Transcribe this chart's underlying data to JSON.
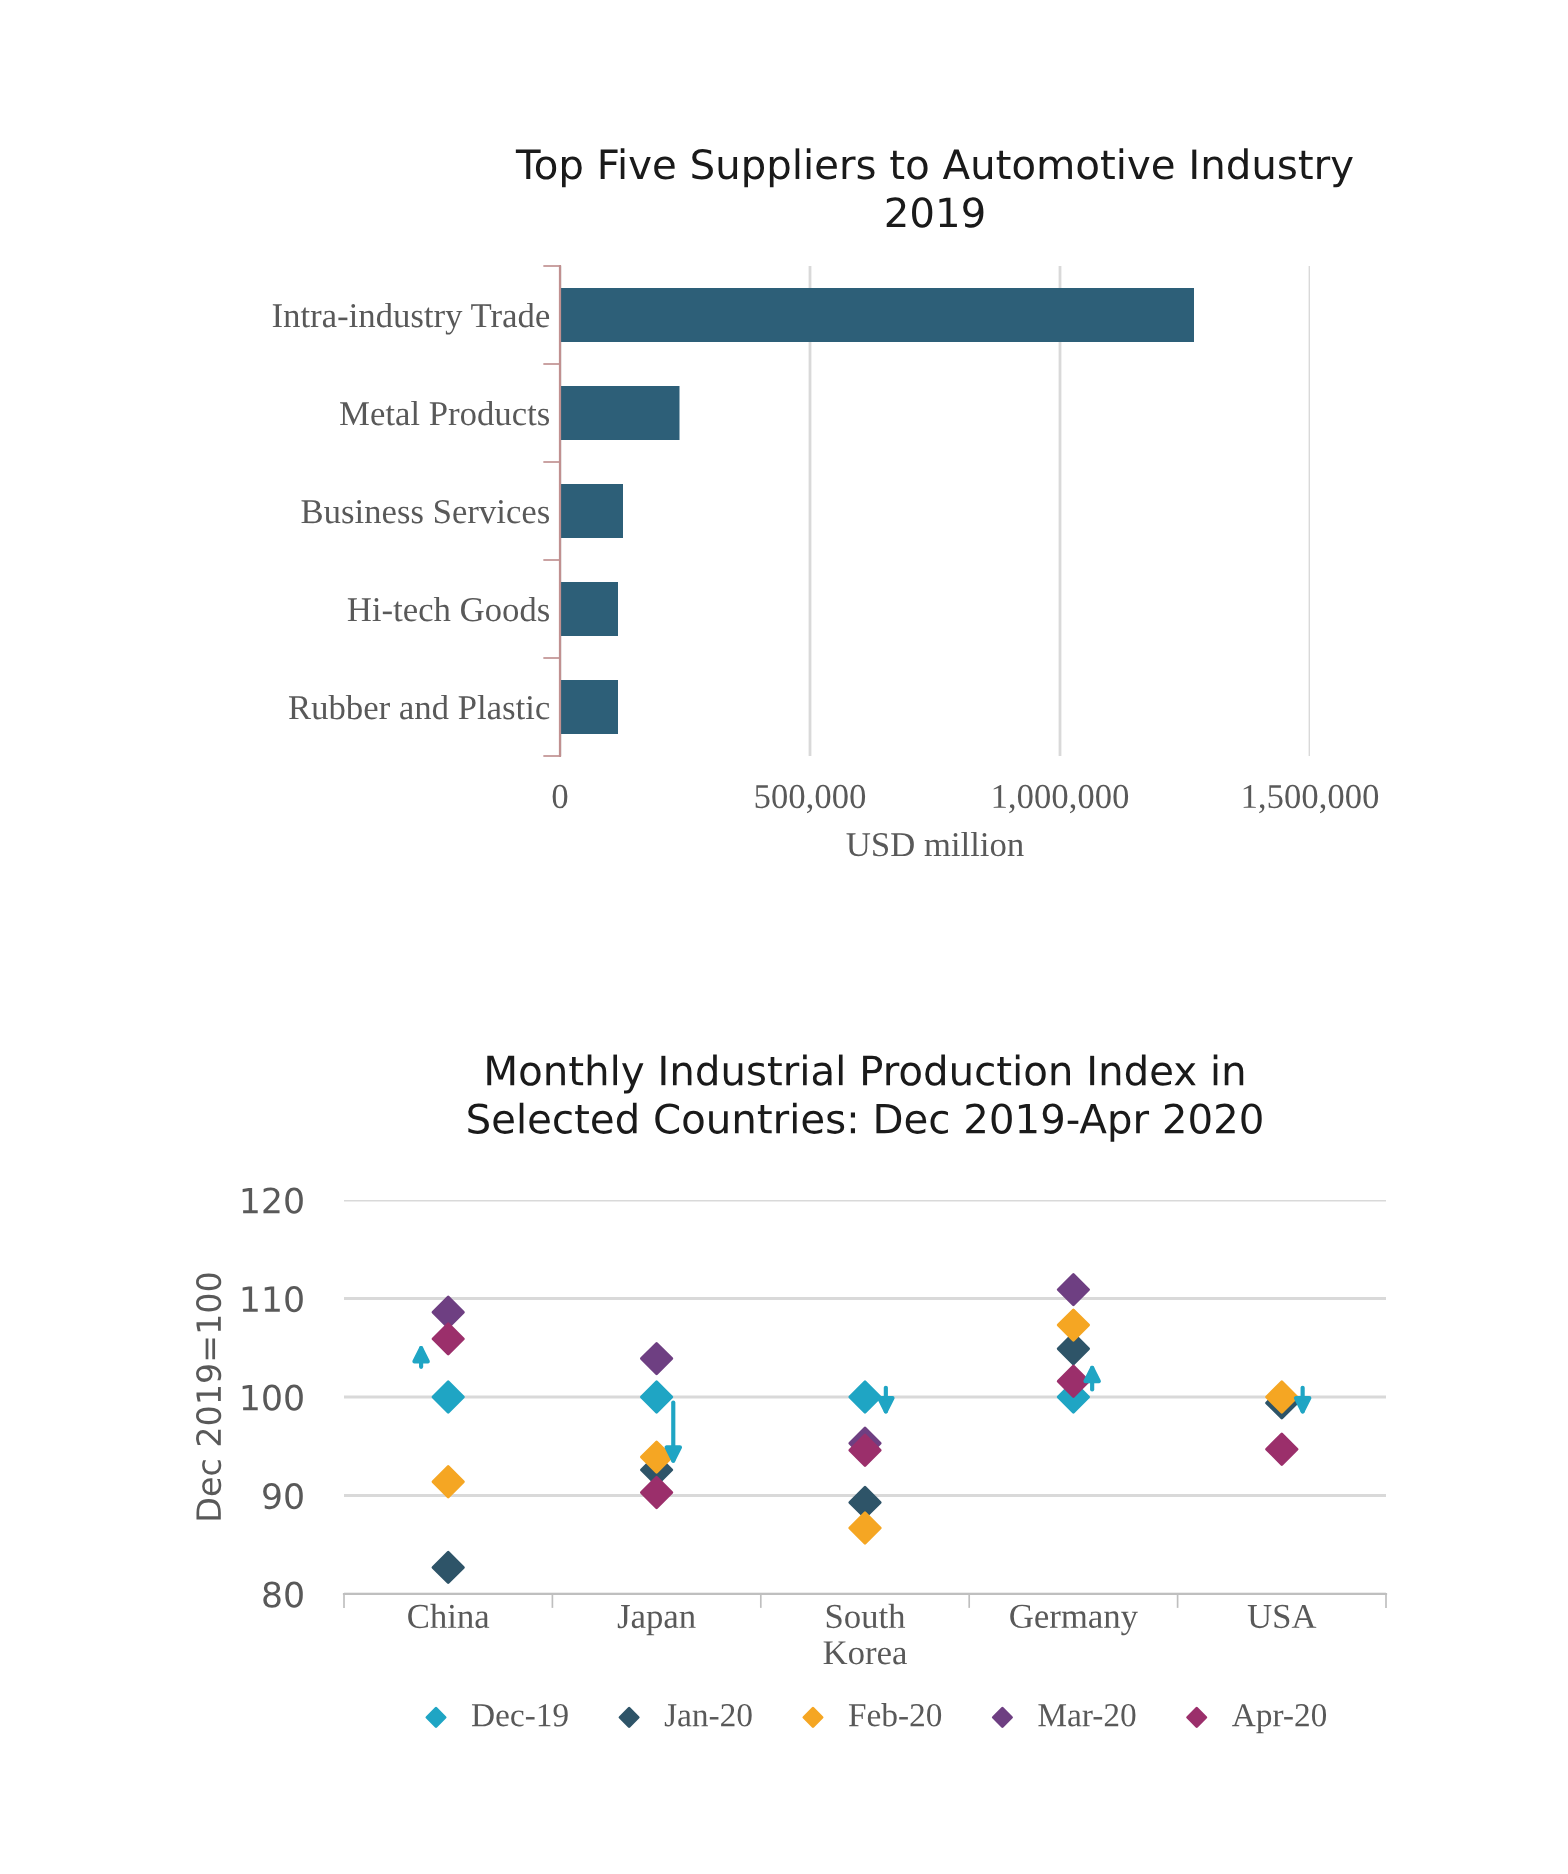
{
  "chart_data": [
    {
      "type": "bar",
      "orientation": "horizontal",
      "title": "Top Five Suppliers to Automotive Industry\n2019",
      "xlabel": "USD million",
      "categories": [
        "Intra-industry Trade",
        "Metal Products",
        "Business Services",
        "Hi-tech Goods",
        "Rubber and Plastic"
      ],
      "values": [
        1268000,
        239000,
        126000,
        116000,
        116000
      ],
      "color": "#2d5f78",
      "xlim": [
        0,
        1500000
      ],
      "xticks": [
        {
          "value": 0,
          "label": "0"
        },
        {
          "value": 500000,
          "label": "500,000"
        },
        {
          "value": 1000000,
          "label": "1,000,000"
        },
        {
          "value": 1500000,
          "label": "1,500,000"
        }
      ],
      "grid": "x"
    },
    {
      "type": "scatter",
      "title": "Monthly Industrial Production Index in\nSelected Countries: Dec 2019-Apr 2020",
      "ylabel": "Dec 2019=100",
      "categories": [
        "China",
        "Japan",
        "South\nKorea",
        "Germany",
        "USA"
      ],
      "series": [
        {
          "name": "Dec-19",
          "color": "#1fa5c4",
          "values": [
            100,
            100,
            100,
            100,
            null
          ]
        },
        {
          "name": "Jan-20",
          "color": "#2e5468",
          "values": [
            82.7,
            92.6,
            89.3,
            104.9,
            99.4
          ]
        },
        {
          "name": "Feb-20",
          "color": "#f5a623",
          "values": [
            91.4,
            93.9,
            86.7,
            107.3,
            100.0
          ]
        },
        {
          "name": "Mar-20",
          "color": "#6e3f82",
          "values": [
            108.6,
            103.9,
            95.3,
            110.9,
            null
          ]
        },
        {
          "name": "Apr-20",
          "color": "#9b2f6b",
          "values": [
            105.9,
            90.3,
            94.6,
            101.6,
            94.7
          ]
        }
      ],
      "ylim": [
        80,
        120
      ],
      "yticks": [
        80,
        90,
        100,
        110,
        120
      ],
      "grid": "y",
      "marker": "diamond",
      "legend": "bottom"
    }
  ]
}
